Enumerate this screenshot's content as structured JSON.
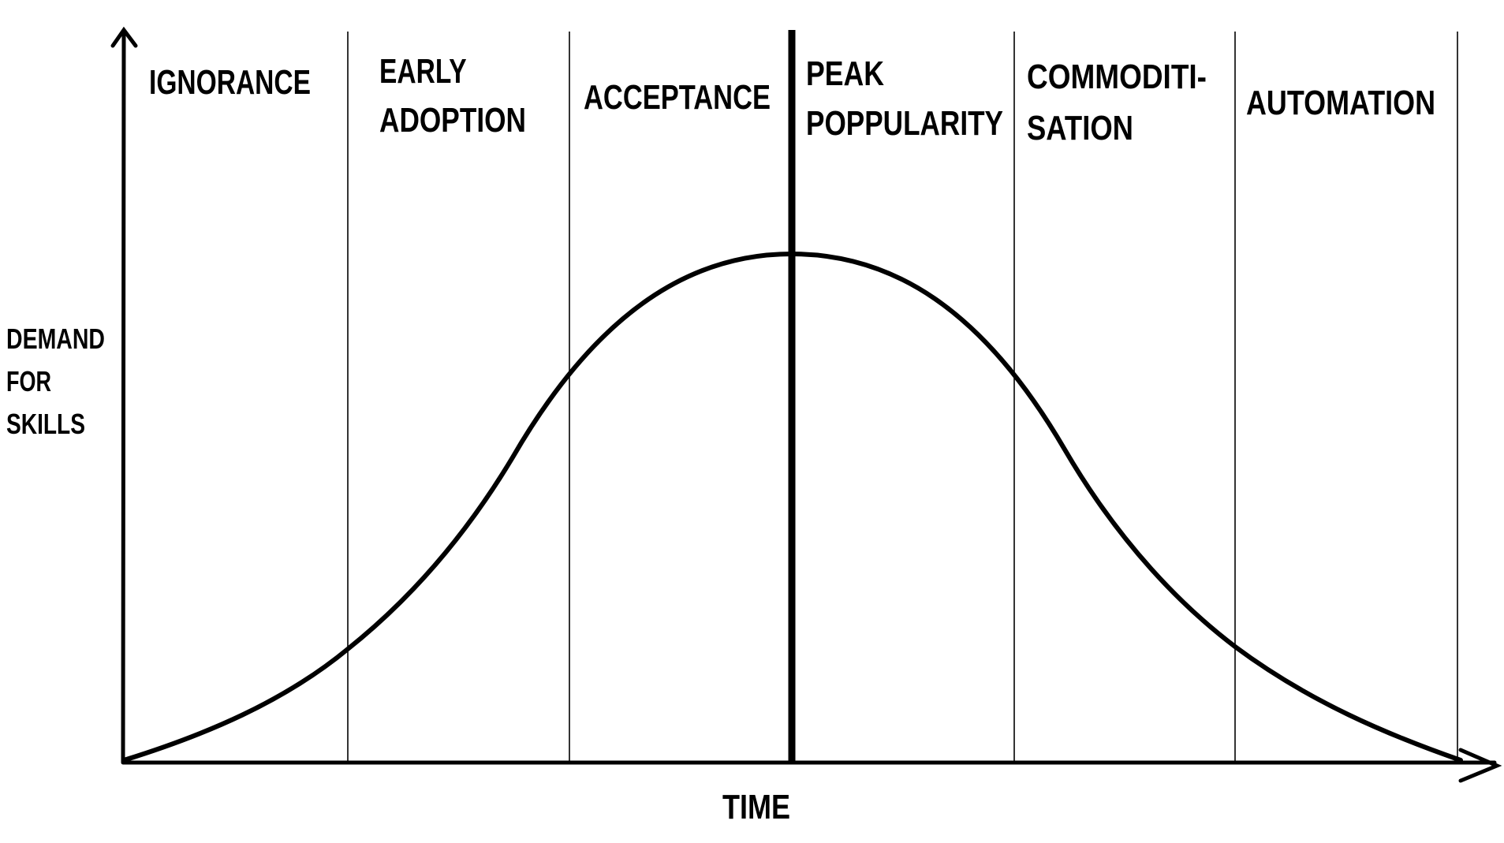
{
  "y_axis_label": [
    "DEMAND",
    "FOR",
    "SKILLS"
  ],
  "x_axis_label": "TIME",
  "phases": [
    {
      "lines": [
        "IGNORANCE"
      ]
    },
    {
      "lines": [
        "EARLY",
        "ADOPTION"
      ]
    },
    {
      "lines": [
        "ACCEPTANCE"
      ]
    },
    {
      "lines": [
        "PEAK",
        "POPPULARITY"
      ]
    },
    {
      "lines": [
        "COMMODITI-",
        "SATION"
      ]
    },
    {
      "lines": [
        "AUTOMATION"
      ]
    }
  ],
  "curve": "bell curve",
  "colors": {
    "ink": "#000000",
    "background": "#ffffff"
  }
}
